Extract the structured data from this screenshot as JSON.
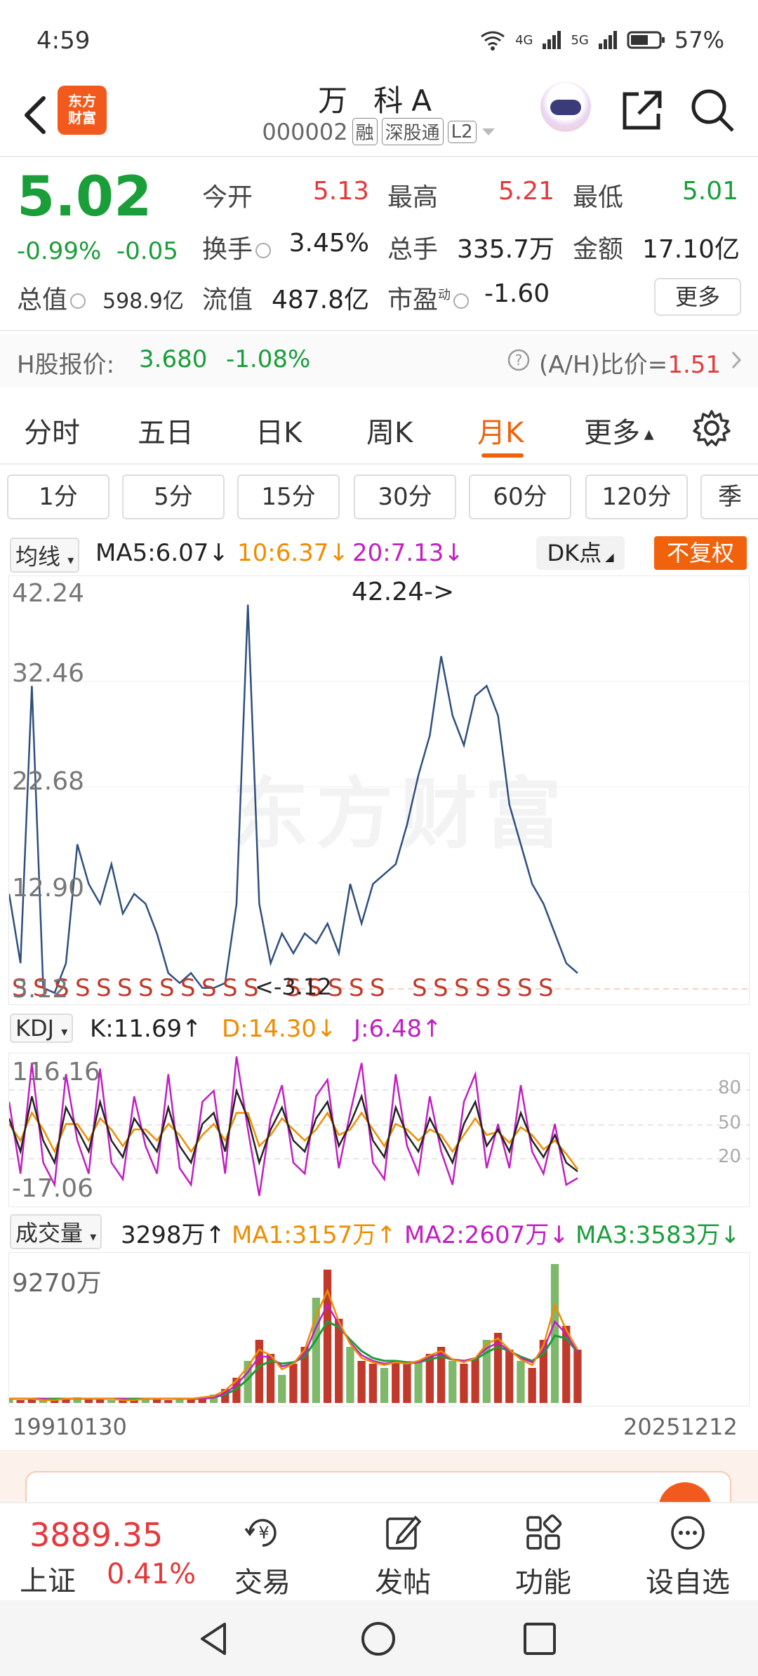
{
  "status": {
    "time": "4:59",
    "net1": "4G",
    "net2": "5G",
    "battery": "57%"
  },
  "header": {
    "logo_line1": "东方",
    "logo_line2": "财富",
    "title": "万 科A",
    "code": "000002",
    "tag_rong": "融",
    "tag_market": "深股通",
    "tag_level": "L2"
  },
  "quote": {
    "price": "5.02",
    "change_pct": "-0.99%",
    "change_abs": "-0.05",
    "open_label": "今开",
    "open": "5.13",
    "high_label": "最高",
    "high": "5.21",
    "low_label": "最低",
    "low": "5.01",
    "turnover_label": "换手",
    "turnover": "3.45%",
    "volume_label": "总手",
    "volume": "335.7万",
    "amount_label": "金额",
    "amount": "17.10亿",
    "mcap_label": "总值",
    "mcap": "598.9亿",
    "float_label": "流值",
    "float": "487.8亿",
    "pe_label": "市盈",
    "pe_sup": "动",
    "pe": "-1.60",
    "more": "更多"
  },
  "hshare": {
    "label": "H股报价:",
    "price": "3.680",
    "pct": "-1.08%",
    "ratio_label": "(A/H)比价=",
    "ratio": "1.51"
  },
  "tabs": [
    {
      "label": "分时"
    },
    {
      "label": "五日"
    },
    {
      "label": "日K"
    },
    {
      "label": "周K"
    },
    {
      "label": "月K"
    },
    {
      "label": "更多"
    }
  ],
  "minute_buttons": [
    "1分",
    "5分",
    "15分",
    "30分",
    "60分",
    "120分",
    "季"
  ],
  "ma": {
    "selector": "均线",
    "ma5": "MA5:6.07",
    "ma10": "10:6.37",
    "ma20": "20:7.13",
    "dk": "DK点",
    "fuquan": "不复权"
  },
  "kdj": {
    "selector": "KDJ",
    "k": "K:11.69",
    "d": "D:14.30",
    "j": "J:6.48",
    "top": "116.16",
    "bottom": "-17.06",
    "ref80": "80",
    "ref50": "50",
    "ref20": "20"
  },
  "volume": {
    "selector": "成交量",
    "vol": "3298万",
    "ma1": "MA1:3157万",
    "ma2": "MA2:2607万",
    "ma3": "MA3:3583万",
    "max": "9270万",
    "date_start": "19910130",
    "date_end": "20251212"
  },
  "bottom": {
    "index_value": "3889.35",
    "index_name": "上证",
    "index_pct": "0.41%",
    "trade": "交易",
    "post": "发帖",
    "func": "功能",
    "watch": "设自选"
  },
  "colors": {
    "up": "#e4393c",
    "down": "#1a9e3a",
    "accent": "#f0620b",
    "price_line": "#2f4f7f",
    "ma10": "#f08c00",
    "ma20": "#c21ec2"
  },
  "chart_data": [
    {
      "type": "line",
      "title": "月K",
      "ylabels": [
        "42.24",
        "32.46",
        "22.68",
        "12.90",
        "3.12"
      ],
      "ylim": [
        3.12,
        42.24
      ],
      "annotations": [
        "42.24->",
        "<-3.12"
      ],
      "marker_label": "S",
      "x": [
        0,
        2,
        4,
        6,
        8,
        10,
        12,
        14,
        16,
        18,
        20,
        22,
        24,
        26,
        28,
        30,
        32,
        34,
        36,
        38,
        40,
        42,
        44,
        46,
        48,
        50,
        52,
        54,
        56,
        58,
        60,
        62,
        64,
        66,
        68,
        70,
        72,
        74,
        76,
        78,
        80,
        82,
        84,
        86,
        88,
        90,
        92,
        94,
        96,
        98,
        100
      ],
      "series": [
        {
          "values": [
            13,
            6,
            34,
            3.5,
            3,
            6,
            18,
            14,
            12,
            16,
            11,
            13,
            12,
            9,
            5,
            4,
            5,
            3.5,
            3.5,
            4,
            12,
            42.2,
            12,
            6,
            9,
            7,
            9,
            8,
            10,
            7,
            14,
            10,
            14,
            15,
            16,
            20,
            25,
            29,
            37,
            31,
            28,
            33,
            34,
            31,
            22,
            18,
            14,
            12,
            9,
            6,
            5
          ]
        }
      ]
    },
    {
      "type": "line",
      "title": "KDJ",
      "ylim": [
        -17.06,
        116.16
      ],
      "series": [
        {
          "name": "K",
          "values": [
            60,
            30,
            80,
            40,
            20,
            70,
            50,
            30,
            75,
            40,
            25,
            60,
            45,
            30,
            70,
            35,
            20,
            55,
            65,
            30,
            85,
            60,
            20,
            50,
            70,
            40,
            30,
            60,
            75,
            35,
            55,
            80,
            40,
            25,
            70,
            45,
            30,
            60,
            40,
            20,
            55,
            75,
            35,
            50,
            30,
            65,
            40,
            25,
            45,
            20,
            12
          ]
        },
        {
          "name": "D",
          "values": [
            55,
            40,
            65,
            50,
            30,
            55,
            55,
            40,
            60,
            50,
            35,
            50,
            50,
            40,
            55,
            45,
            30,
            45,
            55,
            40,
            65,
            65,
            35,
            45,
            60,
            50,
            40,
            50,
            65,
            45,
            50,
            65,
            50,
            35,
            55,
            50,
            40,
            50,
            45,
            30,
            45,
            60,
            45,
            48,
            38,
            52,
            45,
            32,
            40,
            28,
            14
          ]
        },
        {
          "name": "J",
          "values": [
            75,
            10,
            110,
            20,
            0,
            100,
            40,
            10,
            105,
            20,
            5,
            80,
            35,
            10,
            100,
            15,
            0,
            75,
            85,
            10,
            116,
            50,
            -10,
            60,
            90,
            20,
            10,
            80,
            95,
            15,
            65,
            110,
            20,
            5,
            100,
            35,
            10,
            80,
            30,
            0,
            75,
            100,
            15,
            55,
            15,
            90,
            30,
            10,
            55,
            0,
            6
          ]
        }
      ]
    },
    {
      "type": "bar",
      "title": "成交量",
      "ymax_label": "9270万",
      "x_start": "19910130",
      "x_end": "20251212",
      "series": [
        {
          "name": "成交量",
          "values": [
            3,
            2,
            3,
            2,
            2,
            3,
            4,
            3,
            3,
            2,
            2,
            2,
            3,
            3,
            2,
            3,
            3,
            4,
            6,
            10,
            18,
            30,
            45,
            35,
            20,
            28,
            40,
            75,
            95,
            60,
            40,
            30,
            28,
            25,
            30,
            28,
            30,
            35,
            40,
            30,
            28,
            32,
            45,
            50,
            38,
            30,
            25,
            45,
            99,
            55,
            38
          ]
        },
        {
          "name": "MA1",
          "values": [
            3,
            3,
            3,
            2,
            2,
            3,
            3,
            3,
            3,
            3,
            2,
            2,
            3,
            3,
            3,
            3,
            3,
            4,
            5,
            9,
            16,
            26,
            38,
            34,
            24,
            28,
            38,
            62,
            80,
            58,
            42,
            32,
            29,
            27,
            29,
            28,
            30,
            34,
            37,
            31,
            29,
            32,
            42,
            46,
            38,
            31,
            27,
            41,
            70,
            52,
            38
          ]
        },
        {
          "name": "MA2",
          "values": [
            3,
            3,
            3,
            3,
            2,
            3,
            3,
            3,
            3,
            3,
            3,
            2,
            3,
            3,
            3,
            3,
            3,
            3,
            4,
            7,
            13,
            22,
            33,
            33,
            26,
            28,
            35,
            54,
            70,
            56,
            43,
            34,
            30,
            28,
            29,
            28,
            29,
            33,
            35,
            31,
            30,
            32,
            39,
            43,
            37,
            32,
            29,
            38,
            58,
            49,
            36
          ]
        },
        {
          "name": "MA3",
          "values": [
            3,
            3,
            3,
            3,
            3,
            3,
            3,
            3,
            3,
            3,
            3,
            3,
            3,
            3,
            3,
            3,
            3,
            3,
            4,
            6,
            10,
            17,
            26,
            30,
            28,
            29,
            33,
            45,
            58,
            54,
            45,
            37,
            32,
            30,
            30,
            29,
            29,
            31,
            33,
            31,
            30,
            31,
            36,
            40,
            37,
            33,
            30,
            35,
            48,
            46,
            36
          ]
        }
      ]
    }
  ]
}
